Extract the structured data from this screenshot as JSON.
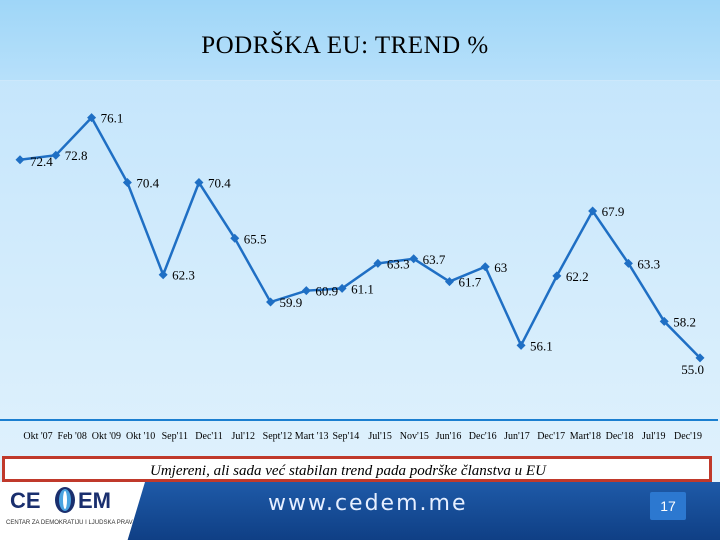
{
  "slide": {
    "title": "PODRŠKA EU: TREND %",
    "caption": "Umjereni, ali sada već stabilan trend pada podrške članstva u EU",
    "footer": {
      "logo_left": "CE",
      "logo_right": "EM",
      "logo_subtitle": "CENTAR ZA DEMOKRATIJU I LJUDSKA PRAVA",
      "url": "www.cedem.me",
      "page_number": "17"
    }
  },
  "chart_data": {
    "type": "line",
    "title": "PODRŠKA EU: TREND %",
    "series": [
      {
        "color": "#1f6fc4",
        "marker": "diamond",
        "values": [
          72.4,
          72.8,
          76.1,
          70.4,
          62.3,
          70.4,
          65.5,
          59.9,
          60.9,
          61.1,
          63.3,
          63.7,
          61.7,
          63,
          56.1,
          62.2,
          67.9,
          63.3,
          58.2,
          55.0
        ]
      }
    ],
    "data_labels": [
      "72.4",
      "72.8",
      "76.1",
      "70.4",
      "62.3",
      "70.4",
      "65.5",
      "59.9",
      "60.9",
      "61.1",
      "63.3",
      "63.7",
      "61.7",
      "63",
      "56.1",
      "62.2",
      "67.9",
      "63.3",
      "58.2",
      "55.0"
    ],
    "x_tick_labels": [
      "Okt '07",
      "Feb '08",
      "Okt '09",
      "Okt '10",
      "Sep'11",
      "Dec'11",
      "Jul'12",
      "Sept'12",
      "Mart '13",
      "Sep'14",
      "Jul'15",
      "Nov'15",
      "Jun'16",
      "Dec'16",
      "Jun'17",
      "Dec'17",
      "Mart'18",
      "Dec'18",
      "Jul'19",
      "Dec'19"
    ],
    "ylim": [
      52,
      78
    ],
    "grid": false,
    "legend": "none",
    "line_color": "#1f6fc4",
    "axis_color": "#1a7fd0"
  }
}
